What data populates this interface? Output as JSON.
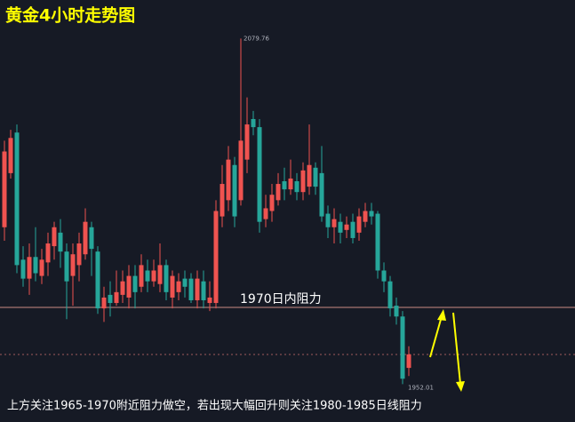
{
  "chart_data": {
    "type": "candlestick",
    "title": "黄金4小时走势图",
    "resistance_label": "1970日内阻力",
    "note": "上方关注1965-1970附近阻力做空，若出现大幅回升则关注1980-1985日线阻力",
    "up_color": "#ef5350",
    "down_color": "#26a69a",
    "ylim": [
      1938,
      2094
    ],
    "open": [
      2010,
      2030,
      2045,
      1998,
      1991,
      1999,
      1992,
      1997,
      2003,
      2008,
      2001,
      1992,
      1996,
      2000,
      2010,
      2001,
      1980,
      1985,
      1982,
      1985,
      1984,
      1992,
      1988,
      1994,
      1990,
      1989,
      1996,
      1984,
      1986,
      1991,
      1991,
      1983,
      1990,
      1982,
      1982,
      2014,
      2020,
      2033,
      2020,
      2035,
      2050,
      2047,
      2013,
      2016,
      2020,
      2027,
      2024,
      2027,
      2023,
      2025,
      2032,
      2030,
      2015,
      2010,
      2012,
      2009,
      2012,
      2008,
      2012,
      2016,
      2015,
      1994,
      1990,
      1981,
      1977,
      1958
    ],
    "high": [
      2042,
      2046,
      2048,
      2003,
      2004,
      2010,
      2002,
      2008,
      2012,
      2013,
      2004,
      2004,
      2008,
      2017,
      2012,
      2003,
      1988,
      1990,
      1994,
      1994,
      1996,
      1996,
      2000,
      1998,
      1998,
      2004,
      1998,
      1994,
      1993,
      1994,
      1993,
      1994,
      1994,
      1990,
      2020,
      2033,
      2040,
      2036,
      2079.76,
      2058,
      2053,
      2050,
      2022,
      2026,
      2030,
      2032,
      2035,
      2030,
      2034,
      2048,
      2034,
      2040,
      2018,
      2017,
      2015,
      2014,
      2015,
      2017,
      2019,
      2019,
      2016,
      1997,
      1992,
      1984,
      1979,
      1966
    ],
    "low": [
      2005,
      2028,
      1993,
      1988,
      1985,
      1990,
      1989,
      1992,
      1998,
      1995,
      1976,
      1981,
      1990,
      1998,
      1992,
      1978,
      1975,
      1977,
      1981,
      1982,
      1980,
      1980,
      1986,
      1986,
      1988,
      1986,
      1983,
      1980,
      1983,
      1984,
      1982,
      1980,
      1980,
      1979,
      1980,
      2010,
      2016,
      2010,
      2018,
      2030,
      2044,
      2008,
      2010,
      2012,
      2018,
      2020,
      2022,
      2020,
      2020,
      2022,
      2022,
      2012,
      2006,
      2004,
      2004,
      2006,
      2004,
      2005,
      2010,
      2011,
      1991,
      1986,
      1977,
      1974,
      1952.01,
      1955
    ],
    "close": [
      2038,
      2043,
      1996,
      1991,
      1999,
      1993,
      1998,
      2004,
      2010,
      2001,
      1990,
      2000,
      2004,
      2012,
      2002,
      1980,
      1984,
      1982,
      1986,
      1990,
      1992,
      1986,
      1996,
      1990,
      1994,
      1996,
      1986,
      1992,
      1990,
      1988,
      1983,
      1991,
      1983,
      1984,
      2016,
      2026,
      2035,
      2014,
      2042,
      2048,
      2047,
      2012,
      2017,
      2022,
      2026,
      2024,
      2028,
      2023,
      2031,
      2033,
      2025,
      2014,
      2010,
      2013,
      2008,
      2011,
      2006,
      2014,
      2016,
      2014,
      1994,
      1990,
      1980,
      1977,
      1954,
      1963
    ]
  }
}
